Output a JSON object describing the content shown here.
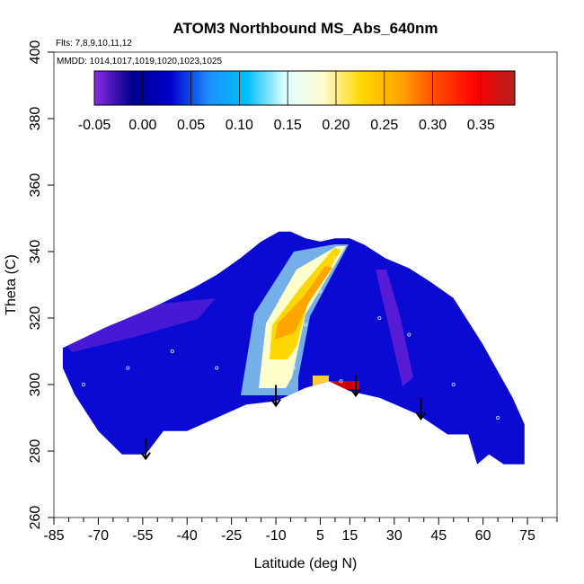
{
  "chart_data": {
    "type": "heatmap",
    "title": "ATOM3 Northbound MS_Abs_640nm",
    "subtitle_flights": "Flts: 7,8,9,10,11,12",
    "subtitle_dates": "MMDD: 1014,1017,1019,1020,1023,1025",
    "xlabel": "Latitude (deg N)",
    "ylabel": "Theta (C)",
    "xlim": [
      -85,
      85
    ],
    "ylim": [
      260,
      400
    ],
    "x_tick_labels": [
      "-85",
      "-70",
      "-55",
      "-40",
      "-25",
      "-10",
      "5",
      "15",
      "30",
      "45",
      "60",
      "75"
    ],
    "y_tick_labels": [
      "260",
      "280",
      "300",
      "320",
      "340",
      "360",
      "380",
      "400"
    ],
    "colorbar": {
      "min": -0.05,
      "max": 0.385,
      "tick_labels": [
        "-0.05",
        "0.00",
        "0.05",
        "0.10",
        "0.15",
        "0.20",
        "0.25",
        "0.30",
        "0.35"
      ],
      "colors": [
        "#8a2be2",
        "#00008b",
        "#0000cd",
        "#1e90ff",
        "#00bfff",
        "#e0ffff",
        "#fffacd",
        "#ffd700",
        "#ffa500",
        "#ff4500",
        "#ff0000",
        "#b22222"
      ]
    },
    "field_boundary_top": [
      [
        -82,
        311
      ],
      [
        -75,
        314
      ],
      [
        -68,
        317
      ],
      [
        -60,
        320
      ],
      [
        -52,
        323
      ],
      [
        -45,
        326
      ],
      [
        -38,
        329
      ],
      [
        -30,
        333
      ],
      [
        -22,
        338
      ],
      [
        -15,
        343
      ],
      [
        -9,
        346
      ],
      [
        -5,
        346
      ],
      [
        0,
        344
      ],
      [
        5,
        343
      ],
      [
        10,
        344
      ],
      [
        15,
        344
      ],
      [
        20,
        342
      ],
      [
        27,
        338
      ],
      [
        35,
        335
      ],
      [
        42,
        331
      ],
      [
        50,
        326
      ],
      [
        55,
        319
      ],
      [
        60,
        312
      ],
      [
        65,
        304
      ],
      [
        70,
        296
      ],
      [
        74,
        288
      ],
      [
        74,
        278
      ]
    ],
    "field_boundary_bottom": [
      [
        74,
        276
      ],
      [
        67,
        276
      ],
      [
        62,
        279
      ],
      [
        58,
        276
      ],
      [
        55,
        285
      ],
      [
        48,
        285
      ],
      [
        38,
        291
      ],
      [
        25,
        296
      ],
      [
        15,
        298
      ],
      [
        8,
        301
      ],
      [
        0,
        299
      ],
      [
        -10,
        295
      ],
      [
        -20,
        294
      ],
      [
        -30,
        290
      ],
      [
        -40,
        286
      ],
      [
        -48,
        286
      ],
      [
        -54,
        279
      ],
      [
        -62,
        279
      ],
      [
        -70,
        286
      ],
      [
        -78,
        297
      ],
      [
        -82,
        305
      ]
    ],
    "field_values": [
      {
        "lat": -75,
        "theta": 300,
        "value": -0.01
      },
      {
        "lat": -60,
        "theta": 305,
        "value": -0.02
      },
      {
        "lat": -45,
        "theta": 310,
        "value": -0.01
      },
      {
        "lat": -30,
        "theta": 305,
        "value": 0.0
      },
      {
        "lat": -15,
        "theta": 300,
        "value": 0.04
      },
      {
        "lat": -8,
        "theta": 300,
        "value": 0.15
      },
      {
        "lat": -4,
        "theta": 305,
        "value": 0.22
      },
      {
        "lat": 0,
        "theta": 318,
        "value": 0.26
      },
      {
        "lat": 5,
        "theta": 328,
        "value": 0.23
      },
      {
        "lat": 10,
        "theta": 338,
        "value": 0.19
      },
      {
        "lat": 12,
        "theta": 301,
        "value": 0.33
      },
      {
        "lat": 25,
        "theta": 320,
        "value": 0.02
      },
      {
        "lat": 35,
        "theta": 315,
        "value": -0.03
      },
      {
        "lat": 50,
        "theta": 300,
        "value": 0.01
      },
      {
        "lat": 65,
        "theta": 290,
        "value": 0.03
      }
    ],
    "arrows_lat": [
      -54,
      -10,
      17,
      39
    ]
  }
}
